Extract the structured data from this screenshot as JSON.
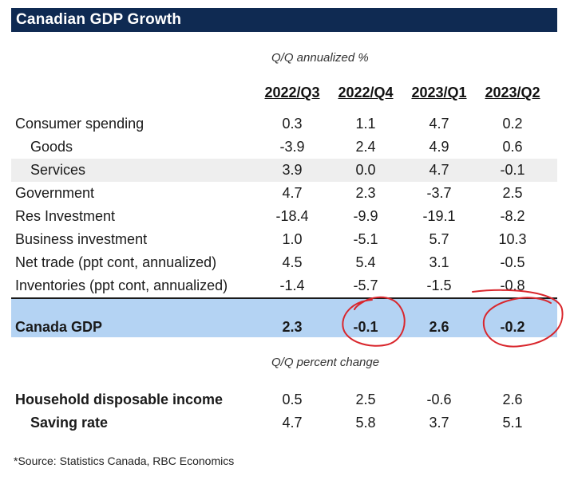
{
  "title": "Canadian GDP Growth",
  "subheads": {
    "annualized": "Q/Q annualized %",
    "percent_change": "Q/Q percent change"
  },
  "columns": [
    "2022/Q3",
    "2022/Q4",
    "2023/Q1",
    "2023/Q2"
  ],
  "rows": [
    {
      "label": "Consumer spending",
      "values": [
        "0.3",
        "1.1",
        "4.7",
        "0.2"
      ]
    },
    {
      "label": "Goods",
      "values": [
        "-3.9",
        "2.4",
        "4.9",
        "0.6"
      ]
    },
    {
      "label": "Services",
      "values": [
        "3.9",
        "0.0",
        "4.7",
        "-0.1"
      ]
    },
    {
      "label": "Government",
      "values": [
        "4.7",
        "2.3",
        "-3.7",
        "2.5"
      ]
    },
    {
      "label": "Res Investment",
      "values": [
        "-18.4",
        "-9.9",
        "-19.1",
        "-8.2"
      ]
    },
    {
      "label": "Business investment",
      "values": [
        "1.0",
        "-5.1",
        "5.7",
        "10.3"
      ]
    },
    {
      "label": "Net trade (ppt cont, annualized)",
      "values": [
        "4.5",
        "5.4",
        "3.1",
        "-0.5"
      ]
    },
    {
      "label": "Inventories (ppt cont, annualized)",
      "values": [
        "-1.4",
        "-5.7",
        "-1.5",
        "-0.8"
      ]
    }
  ],
  "gdp": {
    "label": "Canada GDP",
    "values": [
      "2.3",
      "-0.1",
      "2.6",
      "-0.2"
    ]
  },
  "income_rows": [
    {
      "label": "Household disposable income",
      "values": [
        "0.5",
        "2.5",
        "-0.6",
        "2.6"
      ]
    },
    {
      "label": "Saving rate",
      "values": [
        "4.7",
        "5.8",
        "3.7",
        "5.1"
      ]
    }
  ],
  "source": "*Source:  Statistics Canada, RBC Economics",
  "colors": {
    "title_bg": "#0f2a52",
    "gdp_band": "#b4d3f3",
    "shaded_row": "#eeeeee",
    "annotation": "#d9262c"
  }
}
